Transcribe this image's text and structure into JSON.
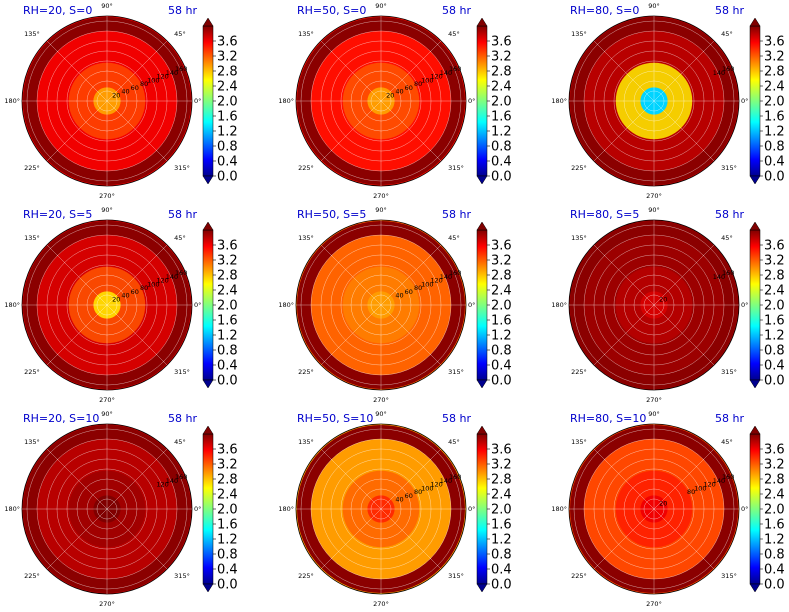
{
  "chart_data": {
    "type": "polar-contour-grid",
    "colormap": "jet",
    "colorbar": {
      "min": 0.0,
      "max": 3.6,
      "ticks": [
        "0.0",
        "0.4",
        "0.8",
        "1.2",
        "1.6",
        "2.0",
        "2.4",
        "2.8",
        "3.2",
        "3.6"
      ],
      "extend": "both"
    },
    "angular_ticks": [
      "0°",
      "45°",
      "90°",
      "135°",
      "180°",
      "225°",
      "270°",
      "315°"
    ],
    "radial_ticks": [
      "20",
      "40",
      "60",
      "80",
      "100",
      "120",
      "140",
      "160"
    ],
    "panels": [
      {
        "title": "RH=20, S=0",
        "time": "58 hr",
        "radial_labels_shown": [
          "20",
          "40",
          "60",
          "80",
          "100",
          "120",
          "140",
          "160"
        ],
        "core_value": 2.6,
        "ring_value": 3.2
      },
      {
        "title": "RH=50, S=0",
        "time": "58 hr",
        "radial_labels_shown": [
          "20",
          "40",
          "60",
          "80",
          "100",
          "120",
          "140",
          "160"
        ],
        "core_value": 2.6,
        "ring_value": 3.1
      },
      {
        "title": "RH=80, S=0",
        "time": "58 hr",
        "radial_labels_shown": [
          "140",
          "160"
        ],
        "core_value": 1.2,
        "ring_value": 3.4
      },
      {
        "title": "RH=20, S=5",
        "time": "58 hr",
        "radial_labels_shown": [
          "20",
          "40",
          "60",
          "80",
          "100",
          "120",
          "140",
          "160"
        ],
        "core_value": 2.4,
        "ring_value": 3.3
      },
      {
        "title": "RH=50, S=5",
        "time": "58 hr",
        "radial_labels_shown": [
          "40",
          "60",
          "80",
          "100",
          "120",
          "140",
          "160"
        ],
        "core_value": 2.6,
        "ring_value": 2.8
      },
      {
        "title": "RH=80, S=5",
        "time": "58 hr",
        "radial_labels_shown": [
          "20",
          "140",
          "160"
        ],
        "core_value": 3.3,
        "ring_value": 3.5
      },
      {
        "title": "RH=20, S=10",
        "time": "58 hr",
        "radial_labels_shown": [
          "120",
          "140",
          "160"
        ],
        "core_value": 3.6,
        "ring_value": 3.4
      },
      {
        "title": "RH=50, S=10",
        "time": "58 hr",
        "radial_labels_shown": [
          "40",
          "60",
          "80",
          "100",
          "120",
          "140",
          "160"
        ],
        "core_value": 3.0,
        "ring_value": 2.6
      },
      {
        "title": "RH=80, S=10",
        "time": "58 hr",
        "radial_labels_shown": [
          "20",
          "80",
          "100",
          "120",
          "140",
          "160"
        ],
        "core_value": 3.2,
        "ring_value": 2.9
      }
    ]
  }
}
